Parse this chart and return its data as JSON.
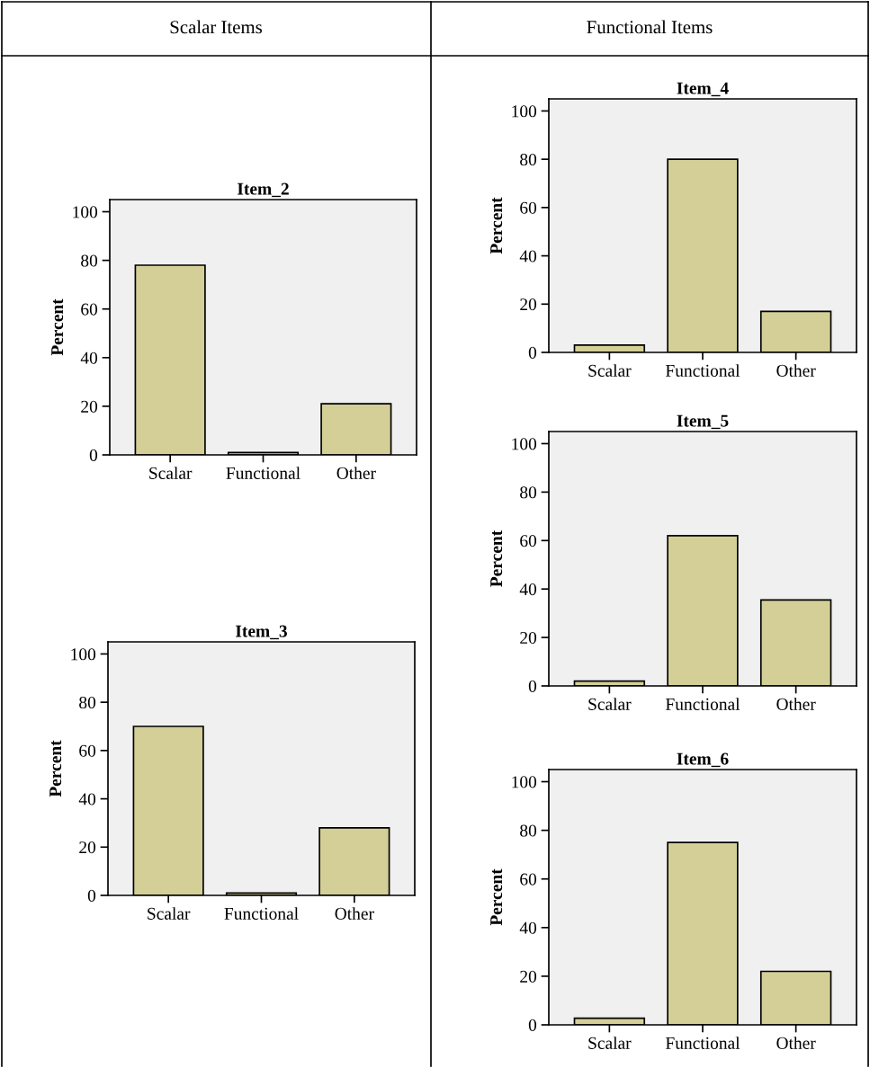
{
  "chart_data": [
    {
      "type": "bar",
      "title": "Item_2",
      "ylabel": "Percent",
      "categories": [
        "Scalar",
        "Functional",
        "Other"
      ],
      "values": [
        78,
        1,
        21
      ],
      "color": "#d3cf97",
      "ylim": [
        0,
        105
      ],
      "yticks": [
        0,
        20,
        40,
        60,
        80,
        100
      ],
      "grid": false,
      "annotations": [
        "Scalar Items"
      ]
    },
    {
      "type": "bar",
      "title": "Item_3",
      "ylabel": "Percent",
      "categories": [
        "Scalar",
        "Functional",
        "Other"
      ],
      "values": [
        70,
        1,
        28
      ],
      "color": "#d3cf97",
      "ylim": [
        0,
        105
      ],
      "yticks": [
        0,
        20,
        40,
        60,
        80,
        100
      ],
      "grid": false
    },
    {
      "type": "bar",
      "title": "Item_4",
      "ylabel": "Percent",
      "categories": [
        "Scalar",
        "Functional",
        "Other"
      ],
      "values": [
        3,
        80,
        17
      ],
      "color": "#d3cf97",
      "ylim": [
        0,
        105
      ],
      "yticks": [
        0,
        20,
        40,
        60,
        80,
        100
      ],
      "grid": false,
      "annotations": [
        "Functional Items"
      ]
    },
    {
      "type": "bar",
      "title": "Item_5",
      "ylabel": "Percent",
      "categories": [
        "Scalar",
        "Functional",
        "Other"
      ],
      "values": [
        2,
        62,
        35.5
      ],
      "color": "#d3cf97",
      "ylim": [
        0,
        105
      ],
      "yticks": [
        0,
        20,
        40,
        60,
        80,
        100
      ],
      "grid": false
    },
    {
      "type": "bar",
      "title": "Item_6",
      "ylabel": "Percent",
      "categories": [
        "Scalar",
        "Functional",
        "Other"
      ],
      "values": [
        2.7,
        75,
        22
      ],
      "color": "#d3cf97",
      "ylim": [
        0,
        105
      ],
      "yticks": [
        0,
        20,
        40,
        60,
        80,
        100
      ],
      "grid": false
    }
  ]
}
